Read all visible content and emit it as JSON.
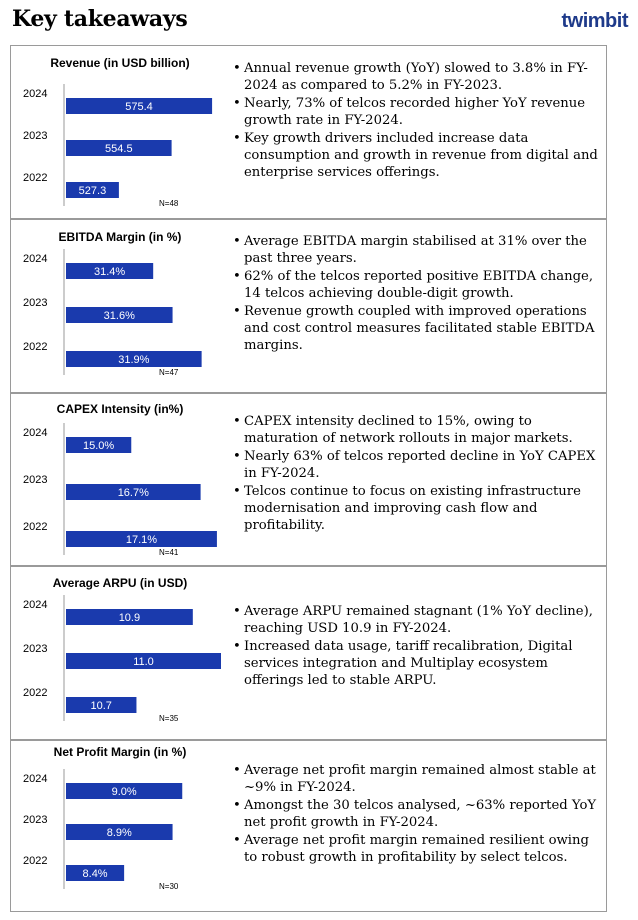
{
  "header": {
    "title": "Key takeaways",
    "logo_text": "twimbit"
  },
  "colors": {
    "bar": "#1a3aad",
    "axis": "#9a9a9a",
    "logo": "#1e3a8a"
  },
  "panels": [
    {
      "bullets": [
        "Annual revenue growth (YoY) slowed to 3.8% in FY-2024 as compared to 5.2% in FY-2023.",
        "Nearly, 73% of telcos recorded higher YoY revenue growth rate in FY-2024.",
        "Key growth drivers included increase data consumption and growth in revenue from digital and enterprise services offerings."
      ]
    },
    {
      "bullets": [
        "Average EBITDA margin stabilised at 31% over the past three years.",
        "62% of the telcos reported positive EBITDA change, 14 telcos achieving double-digit growth.",
        "Revenue growth coupled with improved operations and cost control measures facilitated stable EBITDA margins."
      ]
    },
    {
      "bullets": [
        "CAPEX intensity declined to 15%, owing to maturation of network rollouts in major markets.",
        "Nearly 63% of telcos reported decline in YoY CAPEX in FY-2024.",
        "Telcos continue to focus on existing infrastructure modernisation and improving cash flow and profitability."
      ]
    },
    {
      "bullets": [
        "Average ARPU remained stagnant (1% YoY decline), reaching USD 10.9 in FY-2024.",
        "Increased data usage, tariff recalibration, Digital services integration and Multiplay ecosystem offerings led to stable ARPU."
      ]
    },
    {
      "bullets": [
        "Average net profit margin remained almost stable at ~9% in FY-2024.",
        "Amongst the 30 telcos analysed, ~63% reported YoY net profit growth in FY-2024.",
        "Average net profit margin remained resilient owing to robust growth in profitability by select telcos."
      ]
    }
  ],
  "chart_data": [
    {
      "type": "bar",
      "orientation": "horizontal",
      "title": "Revenue (in USD billion)",
      "categories": [
        "2024",
        "2023",
        "2022"
      ],
      "values": [
        575.4,
        554.5,
        527.3
      ],
      "value_labels": [
        "575.4",
        "554.5",
        "527.3"
      ],
      "xlim": [
        500,
        580
      ],
      "note": "N=48"
    },
    {
      "type": "bar",
      "orientation": "horizontal",
      "title": "EBITDA Margin (in %)",
      "categories": [
        "2024",
        "2023",
        "2022"
      ],
      "values": [
        31.4,
        31.6,
        31.9
      ],
      "value_labels": [
        "31.4%",
        "31.6%",
        "31.9%"
      ],
      "xlim": [
        30.5,
        32.1
      ],
      "note": "N=47"
    },
    {
      "type": "bar",
      "orientation": "horizontal",
      "title": "CAPEX Intensity (in%)",
      "categories": [
        "2024",
        "2023",
        "2022"
      ],
      "values": [
        15.0,
        16.7,
        17.1
      ],
      "value_labels": [
        "15.0%",
        "16.7%",
        "17.1%"
      ],
      "xlim": [
        13.4,
        17.2
      ],
      "note": "N=41"
    },
    {
      "type": "bar",
      "orientation": "horizontal",
      "title": "Average ARPU (in USD)",
      "categories": [
        "2024",
        "2023",
        "2022"
      ],
      "values": [
        10.9,
        11.0,
        10.7
      ],
      "value_labels": [
        "10.9",
        "11.0",
        "10.7"
      ],
      "xlim": [
        10.45,
        11.0
      ],
      "note": "N=35"
    },
    {
      "type": "bar",
      "orientation": "horizontal",
      "title": "Net Profit Margin (in %)",
      "categories": [
        "2024",
        "2023",
        "2022"
      ],
      "values": [
        9.0,
        8.9,
        8.4
      ],
      "value_labels": [
        "9.0%",
        "8.9%",
        "8.4%"
      ],
      "xlim": [
        7.8,
        9.4
      ],
      "note": "N=30"
    }
  ]
}
